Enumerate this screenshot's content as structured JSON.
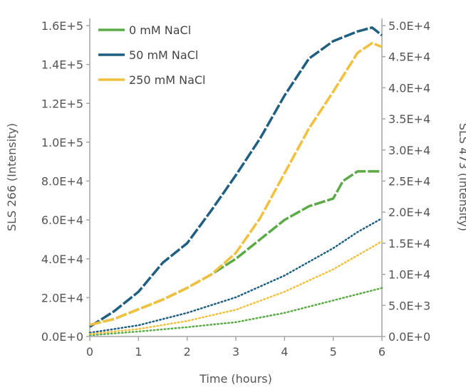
{
  "chart_data": {
    "type": "line",
    "xlabel": "Time (hours)",
    "ylabel_left": "SLS 266 (Intensity)",
    "ylabel_right": "SLS 473 (Intensity)",
    "xlim": [
      0,
      6
    ],
    "ylim_left": [
      0,
      160000
    ],
    "ylim_right": [
      0,
      50000
    ],
    "x_ticks": [
      "0",
      "1",
      "2",
      "3",
      "4",
      "5",
      "6"
    ],
    "y_left_ticks": [
      "0.0E+0",
      "2.0E+4",
      "4.0E+4",
      "6.0E+4",
      "8.0E+4",
      "1.0E+5",
      "1.2E+5",
      "1.4E+5",
      "1.6E+5"
    ],
    "y_right_ticks": [
      "0.0E+0",
      "5.0E+3",
      "1.0E+4",
      "1.5E+4",
      "2.0E+4",
      "2.5E+4",
      "3.0E+4",
      "3.5E+4",
      "4.0E+4",
      "4.5E+4",
      "5.0E+4"
    ],
    "grid": false,
    "legend_position": "top-left",
    "series": [
      {
        "name": "0 mM NaCl",
        "color": "#5aaa46",
        "axis": "left",
        "style": "dashed",
        "x": [
          0,
          0.5,
          1,
          1.5,
          2,
          2.5,
          3,
          3.5,
          4,
          4.5,
          5,
          5.2,
          5.5,
          6
        ],
        "y": [
          6000,
          9000,
          14000,
          19000,
          25000,
          32000,
          40000,
          50000,
          60000,
          67000,
          71000,
          80000,
          85000,
          85000
        ]
      },
      {
        "name": "50 mM NaCl",
        "color": "#1f5f82",
        "axis": "left",
        "style": "dashed",
        "x": [
          0,
          0.5,
          1,
          1.5,
          2,
          2.5,
          3,
          3.5,
          4,
          4.5,
          5,
          5.5,
          5.8,
          6
        ],
        "y": [
          5000,
          13000,
          23000,
          38000,
          48000,
          65000,
          83000,
          102000,
          124000,
          143000,
          152000,
          157000,
          159000,
          155000
        ]
      },
      {
        "name": "250 mM NaCl",
        "color": "#f2c03c",
        "axis": "left",
        "style": "dashed",
        "x": [
          0,
          0.5,
          1,
          1.5,
          2,
          2.5,
          3,
          3.5,
          4,
          4.5,
          5,
          5.5,
          5.8,
          6
        ],
        "y": [
          6000,
          9000,
          14000,
          19000,
          25000,
          32000,
          43000,
          61000,
          84000,
          107000,
          126000,
          146000,
          151000,
          149000
        ]
      },
      {
        "name": "0 mM NaCl",
        "color": "#5aaa46",
        "axis": "right",
        "style": "dotted",
        "x": [
          0,
          1,
          2,
          3,
          4,
          5,
          6
        ],
        "y": [
          200,
          800,
          1500,
          2300,
          3800,
          5800,
          7800
        ]
      },
      {
        "name": "50 mM NaCl",
        "color": "#1f5f82",
        "axis": "right",
        "style": "dotted",
        "x": [
          0,
          1,
          2,
          3,
          4,
          5,
          5.5,
          6
        ],
        "y": [
          600,
          1800,
          3800,
          6300,
          9800,
          14200,
          16800,
          19000
        ]
      },
      {
        "name": "250 mM NaCl",
        "color": "#f2c03c",
        "axis": "right",
        "style": "dotted",
        "x": [
          0,
          1,
          2,
          3,
          4,
          5,
          6
        ],
        "y": [
          400,
          1200,
          2500,
          4300,
          7200,
          10800,
          15300
        ]
      }
    ]
  }
}
